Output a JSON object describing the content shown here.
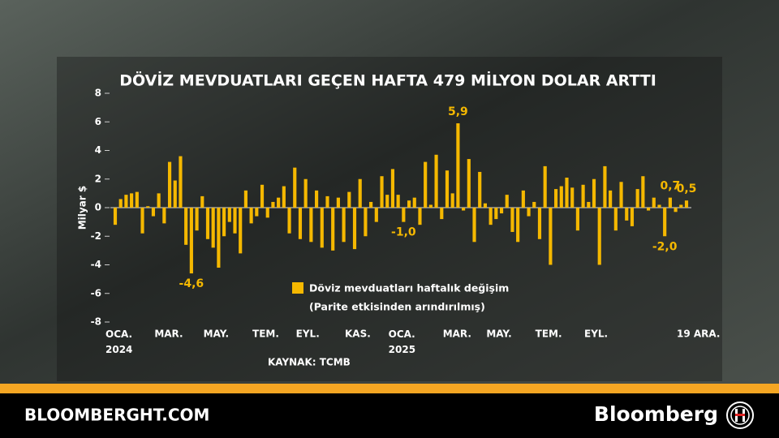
{
  "chart_data": {
    "type": "bar",
    "title": "DÖVİZ MEVDUATLARI GEÇEN HAFTA 479 MİLYON DOLAR ARTTI",
    "y_label": "Milyar $",
    "source": "KAYNAK: TCMB",
    "series": [
      {
        "name": "Döviz mevduatları haftalık değişim",
        "note": "(Parite etkisinden arındırılmış)",
        "color": "#f5b800",
        "values": [
          -1.2,
          0.6,
          0.9,
          1.0,
          1.1,
          -1.8,
          0.1,
          -0.6,
          1.0,
          -1.1,
          3.2,
          1.9,
          3.6,
          -2.6,
          -4.6,
          -1.6,
          0.8,
          -2.2,
          -2.8,
          -4.2,
          -2.0,
          -1.0,
          -1.8,
          -3.2,
          1.2,
          -1.1,
          -0.6,
          1.6,
          -0.7,
          0.4,
          0.7,
          1.5,
          -1.8,
          2.8,
          -2.2,
          2.0,
          -2.4,
          1.2,
          -2.8,
          0.8,
          -3.0,
          0.7,
          -2.4,
          1.1,
          -2.9,
          2.0,
          -2.0,
          0.4,
          -1.0,
          2.2,
          0.9,
          2.7,
          0.9,
          -1.0,
          0.5,
          0.7,
          -1.2,
          3.2,
          0.2,
          3.7,
          -0.8,
          2.6,
          1.0,
          5.9,
          -0.2,
          3.4,
          -2.4,
          2.5,
          0.3,
          -1.2,
          -0.8,
          -0.4,
          0.9,
          -1.7,
          -2.4,
          1.2,
          -0.6,
          0.4,
          -2.2,
          2.9,
          -4.0,
          1.3,
          1.5,
          2.1,
          1.4,
          -1.6,
          1.6,
          0.4,
          2.0,
          -4.0,
          2.9,
          1.2,
          -1.6,
          1.8,
          -0.9,
          -1.3,
          1.3,
          2.2,
          -0.2,
          0.7,
          0.2,
          -2.0,
          0.7,
          -0.3,
          0.2,
          0.5
        ],
        "value_labels": [
          null,
          null,
          null,
          null,
          null,
          null,
          null,
          null,
          null,
          null,
          null,
          null,
          null,
          null,
          "-4,6",
          null,
          null,
          null,
          null,
          null,
          null,
          null,
          null,
          null,
          null,
          null,
          null,
          null,
          null,
          null,
          null,
          null,
          null,
          null,
          null,
          null,
          null,
          null,
          null,
          null,
          null,
          null,
          null,
          null,
          null,
          null,
          null,
          null,
          null,
          null,
          null,
          null,
          null,
          "-1,0",
          null,
          null,
          null,
          null,
          null,
          null,
          null,
          null,
          null,
          "5,9",
          null,
          null,
          null,
          null,
          null,
          null,
          null,
          null,
          null,
          null,
          null,
          null,
          null,
          null,
          null,
          null,
          null,
          null,
          null,
          null,
          null,
          null,
          null,
          null,
          null,
          null,
          null,
          null,
          null,
          null,
          null,
          null,
          null,
          null,
          null,
          null,
          null,
          "-2,0",
          "0,7",
          null,
          null,
          "0,5"
        ]
      }
    ],
    "categories": [
      "OCA.\n2024",
      null,
      null,
      null,
      null,
      null,
      null,
      null,
      null,
      "MAR.",
      null,
      null,
      null,
      null,
      null,
      null,
      null,
      null,
      "MAY.",
      null,
      null,
      null,
      null,
      null,
      null,
      null,
      null,
      "TEM.",
      null,
      null,
      null,
      null,
      null,
      null,
      null,
      "EYL.",
      null,
      null,
      null,
      null,
      null,
      null,
      null,
      null,
      "KAS.",
      null,
      null,
      null,
      null,
      null,
      null,
      null,
      "OCA.\n2025",
      null,
      null,
      null,
      null,
      null,
      null,
      null,
      null,
      null,
      "MAR.",
      null,
      null,
      null,
      null,
      null,
      null,
      null,
      "MAY.",
      null,
      null,
      null,
      null,
      null,
      null,
      null,
      null,
      "TEM.",
      null,
      null,
      null,
      null,
      null,
      null,
      null,
      null,
      "EYL.",
      null,
      null,
      null,
      null,
      null,
      null,
      null,
      null,
      null,
      null,
      null,
      null,
      null,
      null,
      null,
      null,
      "19 ARA."
    ],
    "ylim": [
      -8,
      8
    ],
    "yticks": [
      8,
      6,
      4,
      2,
      0,
      -2,
      -4,
      -6,
      -8
    ]
  },
  "footer": {
    "site": "BLOOMBERGHT.COM",
    "brand": "Bloomberg"
  }
}
